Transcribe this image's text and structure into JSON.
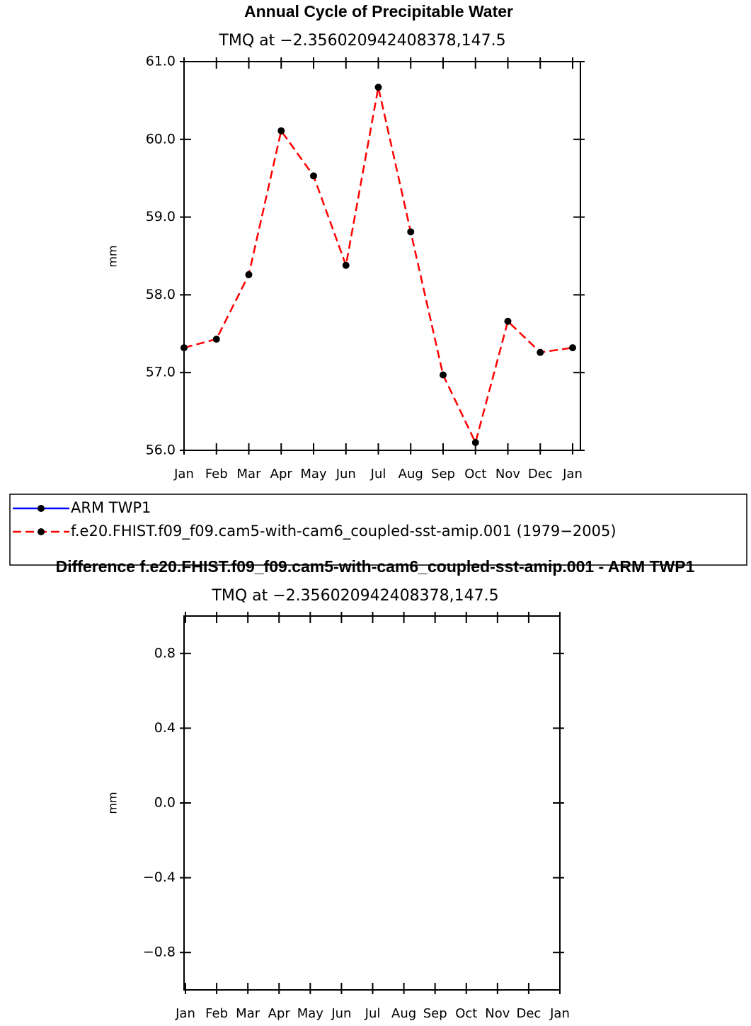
{
  "chart_data": [
    {
      "type": "line",
      "title": "Annual Cycle of Precipitable Water",
      "subtitle": "TMQ at −2.356020942408378,147.5",
      "y_label": "mm",
      "categories": [
        "Jan",
        "Feb",
        "Mar",
        "Apr",
        "May",
        "Jun",
        "Jul",
        "Aug",
        "Sep",
        "Oct",
        "Nov",
        "Dec",
        "Jan"
      ],
      "series": [
        {
          "name": "ARM TWP1",
          "color": "#0000ff",
          "dash": false,
          "values": [
            null,
            null,
            null,
            null,
            null,
            null,
            null,
            null,
            null,
            null,
            null,
            null,
            null
          ]
        },
        {
          "name": "f.e20.FHIST.f09_f09.cam5-with-cam6_coupled-sst-amip.001 (1979−2005)",
          "color": "#ff0000",
          "dash": true,
          "values": [
            57.32,
            57.43,
            58.26,
            60.11,
            59.53,
            58.38,
            60.67,
            58.81,
            56.97,
            56.1,
            57.66,
            57.26,
            57.32
          ]
        }
      ],
      "ylim": [
        56,
        61
      ],
      "yticks": [
        {
          "value": 56,
          "label": "56.0"
        },
        {
          "value": 57,
          "label": "57.0"
        },
        {
          "value": 58,
          "label": "58.0"
        },
        {
          "value": 59,
          "label": "59.0"
        },
        {
          "value": 60,
          "label": "60.0"
        },
        {
          "value": 61,
          "label": "61.0"
        }
      ],
      "legend": "bottom"
    },
    {
      "type": "line",
      "title": "Difference f.e20.FHIST.f09_f09.cam5-with-cam6_coupled-sst-amip.001 - ARM TWP1",
      "subtitle": "TMQ at −2.356020942408378,147.5",
      "y_label": "mm",
      "categories": [
        "Jan",
        "Feb",
        "Mar",
        "Apr",
        "May",
        "Jun",
        "Jul",
        "Aug",
        "Sep",
        "Oct",
        "Nov",
        "Dec",
        "Jan"
      ],
      "series": [],
      "ylim": [
        -1,
        1
      ],
      "yticks": [
        {
          "value": -0.8,
          "label": "−0.8"
        },
        {
          "value": -0.4,
          "label": "−0.4"
        },
        {
          "value": 0,
          "label": "0.0"
        },
        {
          "value": 0.4,
          "label": "0.4"
        },
        {
          "value": 0.8,
          "label": "0.8"
        }
      ]
    }
  ]
}
